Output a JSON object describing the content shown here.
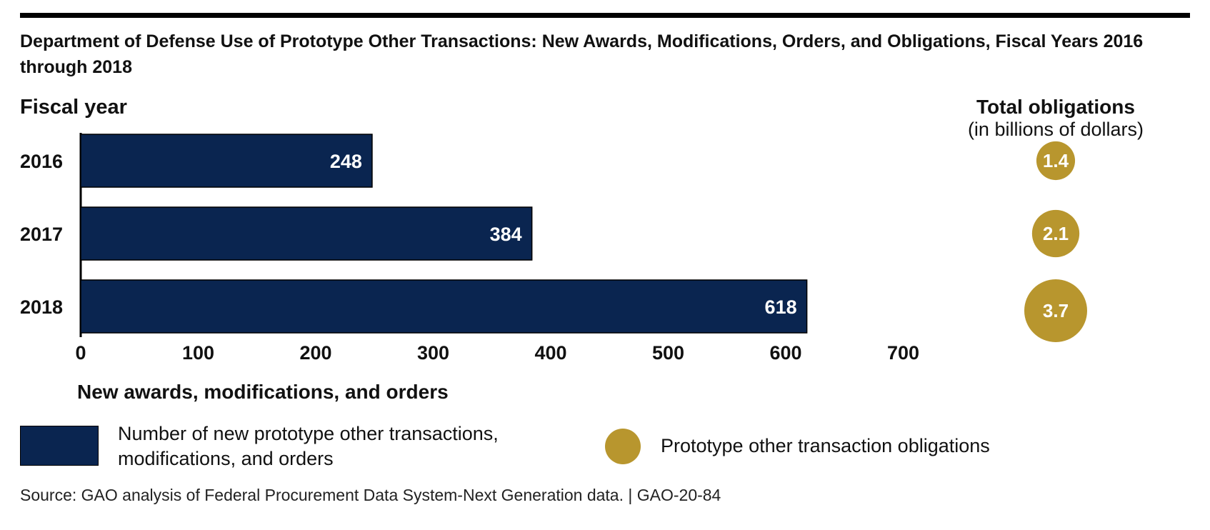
{
  "title": "Department of Defense Use of Prototype Other Transactions: New Awards, Modifications, Orders, and Obligations, Fiscal Years 2016 through 2018",
  "chart_data": {
    "type": "bar",
    "orientation": "horizontal",
    "categories": [
      "2016",
      "2017",
      "2018"
    ],
    "values": [
      248,
      384,
      618
    ],
    "ylabel": "Fiscal year",
    "xlabel": "New awards, modifications, and orders",
    "xlim": [
      0,
      700
    ],
    "xticks": [
      0,
      100,
      200,
      300,
      400,
      500,
      600,
      700
    ],
    "grid": false,
    "bar_color": "#0a2550",
    "obligations": {
      "title": "Total obligations",
      "subtitle": "(in billions of dollars)",
      "values": [
        1.4,
        2.1,
        3.7
      ],
      "labels": [
        "1.4",
        "2.1",
        "3.7"
      ],
      "color": "#b8962e"
    }
  },
  "legend": {
    "bar_label": "Number of new prototype other transactions, modifications, and orders",
    "dot_label": "Prototype other transaction obligations"
  },
  "source": "Source: GAO analysis of Federal Procurement Data System-Next Generation data.  |  GAO-20-84"
}
